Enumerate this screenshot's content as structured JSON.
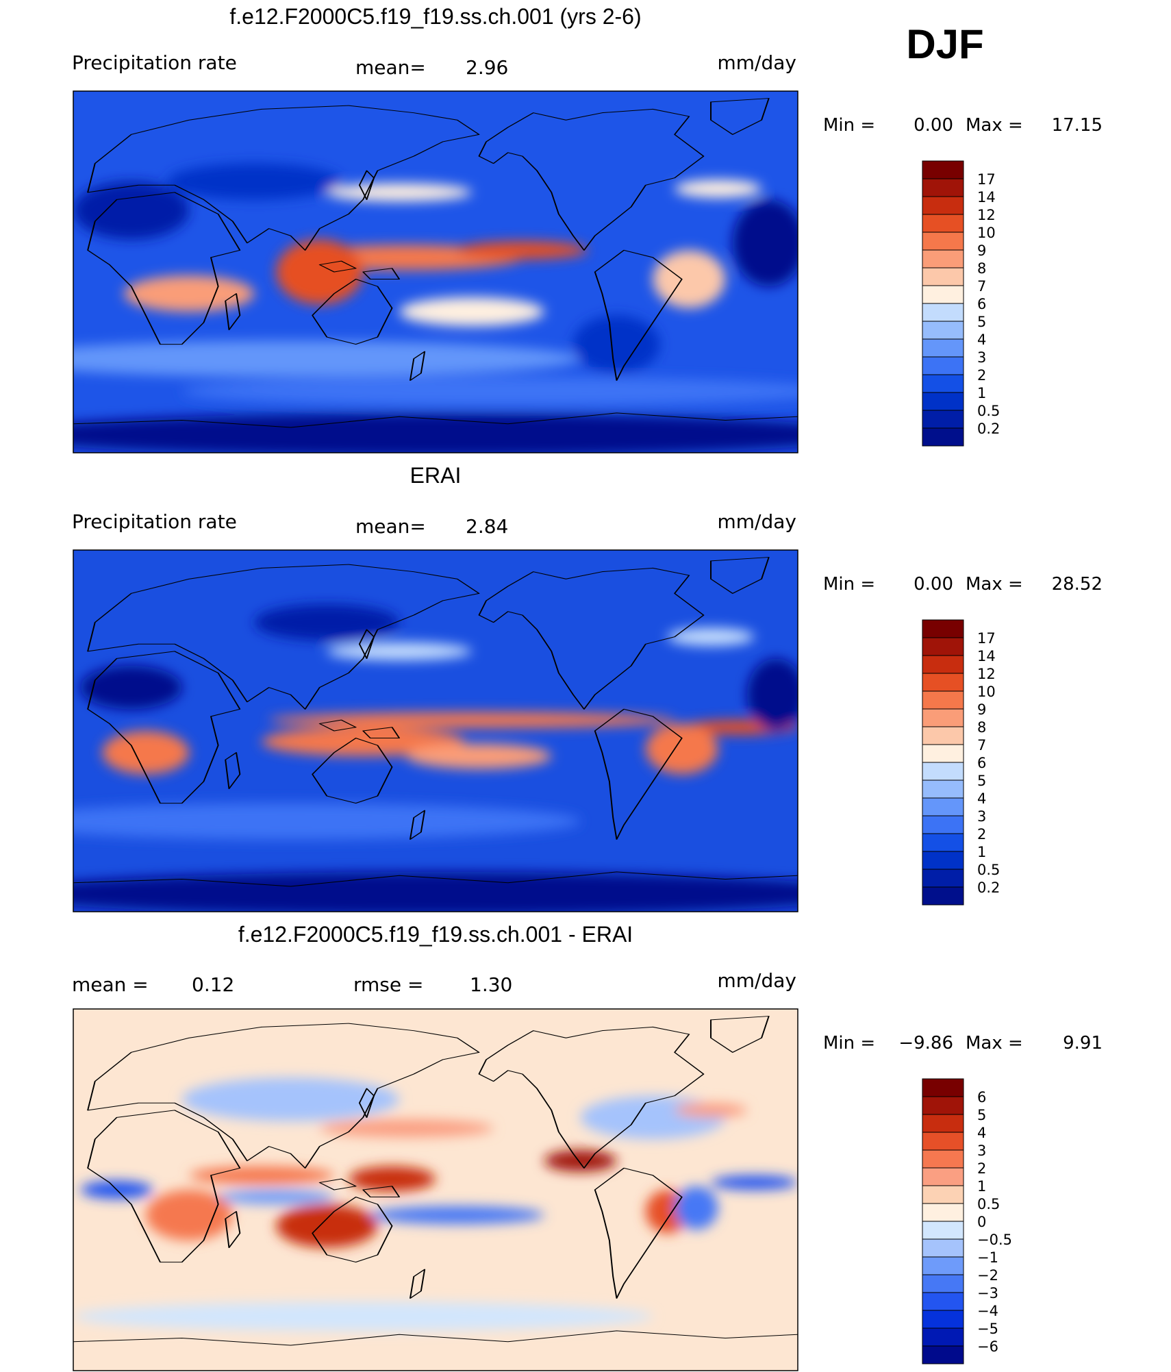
{
  "season_label": "DJF",
  "units": "mm/day",
  "chart_data": [
    {
      "type": "heatmap",
      "title": "f.e12.F2000C5.f19_f19.ss.ch.001 (yrs 2-6)",
      "variable": "Precipitation rate",
      "stat_line": {
        "label": "mean=",
        "value": "2.96"
      },
      "units": "mm/day",
      "min_label": "Min =",
      "min": "0.00",
      "max_label": "Max =",
      "max": "17.15",
      "colorbar": {
        "levels": [
          "0.2",
          "0.5",
          "1",
          "2",
          "3",
          "4",
          "5",
          "6",
          "7",
          "8",
          "9",
          "10",
          "12",
          "14",
          "17"
        ],
        "colors": [
          "#000f8c",
          "#001ea8",
          "#0032c8",
          "#1450e6",
          "#3c73f5",
          "#6496fa",
          "#96bcfc",
          "#c3dcfd",
          "#fff0e0",
          "#fcc8aa",
          "#fa9d78",
          "#f5784b",
          "#e65024",
          "#c82d0f",
          "#a01408",
          "#780000"
        ]
      },
      "map_base": "#1e55e8",
      "field": [
        {
          "cx": 0.46,
          "cy": 0.46,
          "rx": 0.16,
          "ry": 0.035,
          "level": 11
        },
        {
          "cx": 0.62,
          "cy": 0.44,
          "rx": 0.09,
          "ry": 0.025,
          "level": 12
        },
        {
          "cx": 0.34,
          "cy": 0.5,
          "rx": 0.06,
          "ry": 0.09,
          "level": 12
        },
        {
          "cx": 0.16,
          "cy": 0.56,
          "rx": 0.09,
          "ry": 0.05,
          "level": 10
        },
        {
          "cx": 0.55,
          "cy": 0.61,
          "rx": 0.1,
          "ry": 0.04,
          "level": 8
        },
        {
          "cx": 0.85,
          "cy": 0.52,
          "rx": 0.05,
          "ry": 0.08,
          "level": 9
        },
        {
          "cx": 0.45,
          "cy": 0.28,
          "rx": 0.1,
          "ry": 0.025,
          "level": 8
        },
        {
          "cx": 0.89,
          "cy": 0.27,
          "rx": 0.06,
          "ry": 0.025,
          "level": 8
        },
        {
          "cx": 0.3,
          "cy": 0.74,
          "rx": 0.4,
          "ry": 0.05,
          "level": 5
        },
        {
          "cx": 0.6,
          "cy": 0.83,
          "rx": 0.45,
          "ry": 0.04,
          "level": 4
        },
        {
          "cx": 0.08,
          "cy": 0.33,
          "rx": 0.08,
          "ry": 0.08,
          "level": 1
        },
        {
          "cx": 0.25,
          "cy": 0.25,
          "rx": 0.12,
          "ry": 0.05,
          "level": 2
        },
        {
          "cx": 0.96,
          "cy": 0.42,
          "rx": 0.05,
          "ry": 0.12,
          "level": 0
        },
        {
          "cx": 0.75,
          "cy": 0.7,
          "rx": 0.06,
          "ry": 0.08,
          "level": 2
        },
        {
          "cx": 0.5,
          "cy": 0.95,
          "rx": 0.6,
          "ry": 0.06,
          "level": 0
        }
      ]
    },
    {
      "type": "heatmap",
      "title": "ERAI",
      "variable": "Precipitation rate",
      "stat_line": {
        "label": "mean=",
        "value": "2.84"
      },
      "units": "mm/day",
      "min_label": "Min =",
      "min": "0.00",
      "max_label": "Max =",
      "max": "28.52",
      "colorbar": {
        "levels": [
          "0.2",
          "0.5",
          "1",
          "2",
          "3",
          "4",
          "5",
          "6",
          "7",
          "8",
          "9",
          "10",
          "12",
          "14",
          "17"
        ],
        "colors": [
          "#000f8c",
          "#001ea8",
          "#0032c8",
          "#1450e6",
          "#3c73f5",
          "#6496fa",
          "#96bcfc",
          "#c3dcfd",
          "#fff0e0",
          "#fcc8aa",
          "#fa9d78",
          "#f5784b",
          "#e65024",
          "#c82d0f",
          "#a01408",
          "#780000"
        ]
      },
      "map_base": "#1a4fe0",
      "field": [
        {
          "cx": 0.55,
          "cy": 0.47,
          "rx": 0.28,
          "ry": 0.022,
          "level": 11
        },
        {
          "cx": 0.92,
          "cy": 0.49,
          "rx": 0.08,
          "ry": 0.02,
          "level": 12
        },
        {
          "cx": 0.4,
          "cy": 0.53,
          "rx": 0.14,
          "ry": 0.04,
          "level": 11
        },
        {
          "cx": 0.56,
          "cy": 0.57,
          "rx": 0.1,
          "ry": 0.035,
          "level": 10
        },
        {
          "cx": 0.1,
          "cy": 0.56,
          "rx": 0.06,
          "ry": 0.06,
          "level": 11
        },
        {
          "cx": 0.84,
          "cy": 0.55,
          "rx": 0.05,
          "ry": 0.07,
          "level": 11
        },
        {
          "cx": 0.45,
          "cy": 0.28,
          "rx": 0.1,
          "ry": 0.025,
          "level": 7
        },
        {
          "cx": 0.88,
          "cy": 0.24,
          "rx": 0.06,
          "ry": 0.025,
          "level": 7
        },
        {
          "cx": 0.35,
          "cy": 0.2,
          "rx": 0.1,
          "ry": 0.05,
          "level": 1
        },
        {
          "cx": 0.3,
          "cy": 0.75,
          "rx": 0.4,
          "ry": 0.05,
          "level": 4
        },
        {
          "cx": 0.08,
          "cy": 0.38,
          "rx": 0.07,
          "ry": 0.06,
          "level": 0
        },
        {
          "cx": 0.97,
          "cy": 0.4,
          "rx": 0.04,
          "ry": 0.1,
          "level": 0
        },
        {
          "cx": 0.5,
          "cy": 0.95,
          "rx": 0.6,
          "ry": 0.06,
          "level": 0
        }
      ]
    },
    {
      "type": "heatmap",
      "title": "f.e12.F2000C5.f19_f19.ss.ch.001 - ERAI",
      "stat_line": {
        "label": "mean =",
        "value": "0.12"
      },
      "stat_line2": {
        "label": "rmse =",
        "value": "1.30"
      },
      "units": "mm/day",
      "min_label": "Min =",
      "min": "−9.86",
      "max_label": "Max =",
      "max": "9.91",
      "colorbar": {
        "levels": [
          "−6",
          "−5",
          "−4",
          "−3",
          "−2",
          "−1",
          "−0.5",
          "0",
          "0.5",
          "1",
          "2",
          "3",
          "4",
          "5",
          "6"
        ],
        "colors": [
          "#000a8c",
          "#0019b4",
          "#0532dc",
          "#2355f0",
          "#4678f5",
          "#6e9bfa",
          "#a5c3fc",
          "#d2e6fd",
          "#fff0e0",
          "#fcd2b4",
          "#fa9f82",
          "#f57850",
          "#e65028",
          "#c82d0f",
          "#a01408",
          "#780000"
        ]
      },
      "map_base": "#fde6d2",
      "field": [
        {
          "cx": 0.35,
          "cy": 0.6,
          "rx": 0.07,
          "ry": 0.06,
          "level": 13
        },
        {
          "cx": 0.44,
          "cy": 0.47,
          "rx": 0.06,
          "ry": 0.035,
          "level": 13
        },
        {
          "cx": 0.7,
          "cy": 0.42,
          "rx": 0.05,
          "ry": 0.03,
          "level": 14
        },
        {
          "cx": 0.16,
          "cy": 0.57,
          "rx": 0.06,
          "ry": 0.07,
          "level": 11
        },
        {
          "cx": 0.26,
          "cy": 0.46,
          "rx": 0.1,
          "ry": 0.025,
          "level": 11
        },
        {
          "cx": 0.82,
          "cy": 0.56,
          "rx": 0.03,
          "ry": 0.06,
          "level": 12
        },
        {
          "cx": 0.46,
          "cy": 0.33,
          "rx": 0.12,
          "ry": 0.025,
          "level": 10
        },
        {
          "cx": 0.53,
          "cy": 0.57,
          "rx": 0.12,
          "ry": 0.025,
          "level": 4
        },
        {
          "cx": 0.94,
          "cy": 0.48,
          "rx": 0.06,
          "ry": 0.02,
          "level": 3
        },
        {
          "cx": 0.06,
          "cy": 0.5,
          "rx": 0.05,
          "ry": 0.025,
          "level": 3
        },
        {
          "cx": 0.86,
          "cy": 0.55,
          "rx": 0.03,
          "ry": 0.06,
          "level": 4
        },
        {
          "cx": 0.28,
          "cy": 0.52,
          "rx": 0.08,
          "ry": 0.02,
          "level": 5
        },
        {
          "cx": 0.3,
          "cy": 0.25,
          "rx": 0.15,
          "ry": 0.06,
          "level": 6
        },
        {
          "cx": 0.8,
          "cy": 0.3,
          "rx": 0.1,
          "ry": 0.06,
          "level": 6
        },
        {
          "cx": 0.4,
          "cy": 0.85,
          "rx": 0.4,
          "ry": 0.04,
          "level": 7
        },
        {
          "cx": 0.88,
          "cy": 0.28,
          "rx": 0.05,
          "ry": 0.02,
          "level": 10
        }
      ]
    }
  ]
}
